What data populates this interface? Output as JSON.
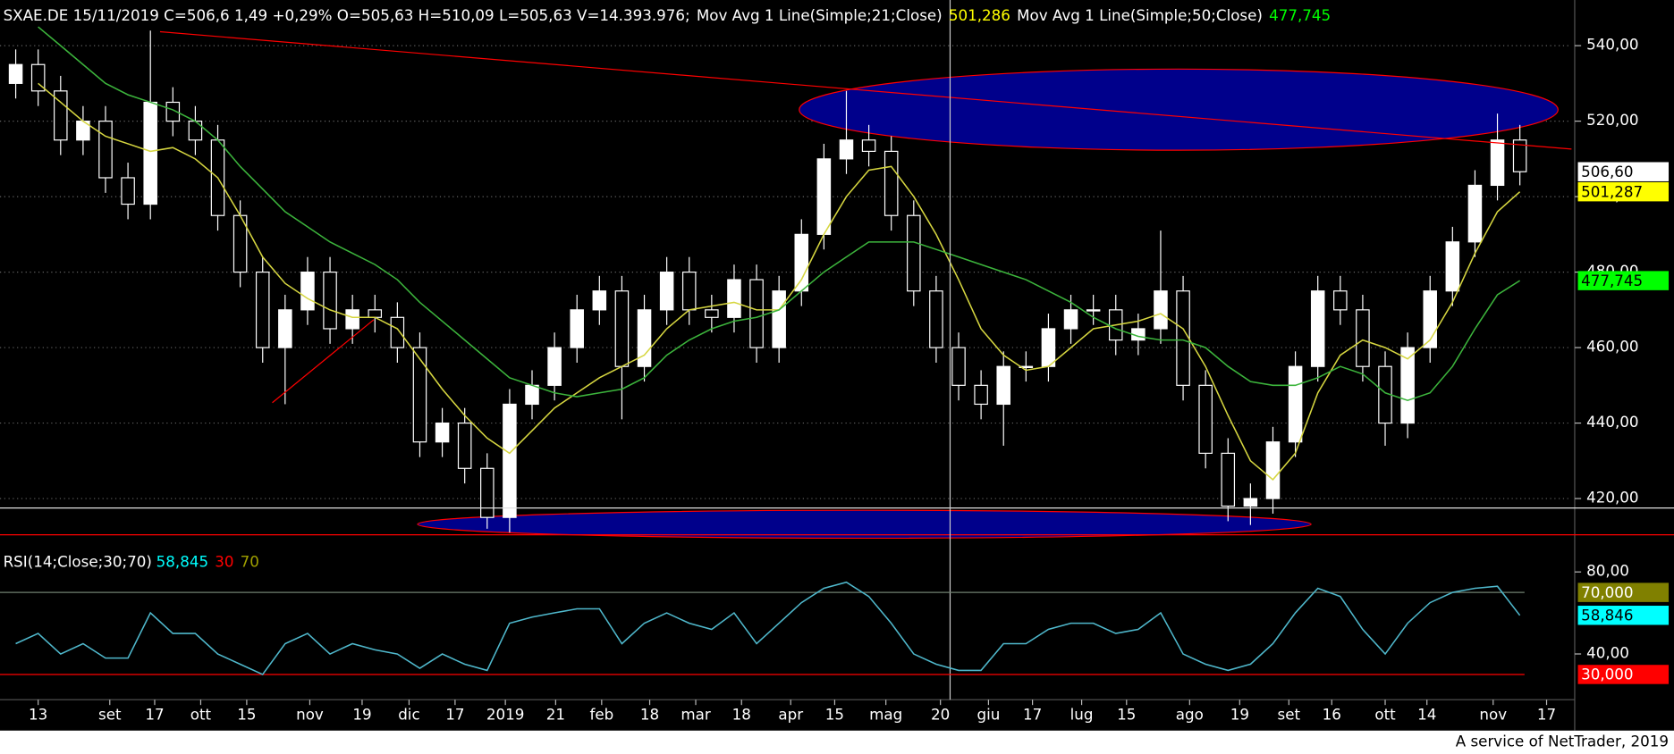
{
  "chart_data": [
    {
      "type": "candlestick",
      "title": "SXAE.DE 15/11/2019 C=506,6 1,49 +0,29% O=505,63 H=510,09 L=505,63 V=14.393.976;",
      "x": [
        0,
        1,
        2,
        3,
        4,
        5,
        6,
        7,
        8,
        9,
        10,
        11,
        12,
        13,
        14,
        15,
        16,
        17,
        18,
        19,
        20,
        21,
        22,
        23,
        24,
        25,
        26,
        27,
        28,
        29,
        30,
        31,
        32,
        33,
        34,
        35,
        36,
        37,
        38,
        39,
        40,
        41,
        42,
        43,
        44,
        45,
        46,
        47,
        48,
        49,
        50,
        51,
        52,
        53,
        54,
        55,
        56,
        57,
        58,
        59,
        60,
        61,
        62,
        63,
        64,
        65,
        66,
        67
      ],
      "xlim": [
        -0.7,
        69.3
      ],
      "ohlc": {
        "open": [
          530,
          535,
          528,
          515,
          520,
          505,
          498,
          525,
          520,
          515,
          495,
          480,
          460,
          470,
          480,
          465,
          470,
          468,
          460,
          435,
          440,
          428,
          415,
          445,
          450,
          460,
          470,
          475,
          455,
          470,
          480,
          470,
          468,
          478,
          460,
          475,
          490,
          510,
          515,
          512,
          495,
          475,
          460,
          450,
          445,
          455,
          455,
          465,
          470,
          470,
          462,
          465,
          475,
          450,
          432,
          418,
          420,
          435,
          455,
          475,
          470,
          455,
          440,
          460,
          475,
          488,
          503,
          515
        ],
        "high": [
          539,
          539,
          532,
          524,
          524,
          509,
          544,
          529,
          524,
          519,
          499,
          484,
          474,
          484,
          484,
          474,
          474,
          472,
          464,
          444,
          444,
          432,
          449,
          454,
          464,
          474,
          479,
          479,
          474,
          484,
          484,
          474,
          482,
          482,
          479,
          494,
          514,
          528,
          519,
          516,
          499,
          479,
          464,
          454,
          459,
          459,
          469,
          474,
          474,
          474,
          469,
          491,
          479,
          454,
          436,
          424,
          439,
          459,
          479,
          479,
          474,
          459,
          464,
          479,
          492,
          507,
          522,
          519
        ],
        "low": [
          526,
          524,
          511,
          511,
          501,
          494,
          494,
          516,
          511,
          491,
          476,
          456,
          445,
          466,
          461,
          461,
          464,
          456,
          431,
          431,
          424,
          412,
          411,
          441,
          446,
          456,
          466,
          441,
          451,
          466,
          466,
          464,
          464,
          456,
          456,
          471,
          486,
          506,
          508,
          491,
          471,
          456,
          446,
          441,
          434,
          451,
          451,
          461,
          466,
          458,
          458,
          461,
          446,
          428,
          414,
          413,
          416,
          431,
          451,
          466,
          451,
          434,
          436,
          456,
          471,
          484,
          499,
          503
        ],
        "close": [
          535,
          528,
          515,
          520,
          505,
          498,
          525,
          520,
          515,
          495,
          480,
          460,
          470,
          480,
          465,
          470,
          468,
          460,
          435,
          440,
          428,
          415,
          445,
          450,
          460,
          470,
          475,
          455,
          470,
          480,
          470,
          468,
          478,
          460,
          475,
          490,
          510,
          515,
          512,
          495,
          475,
          460,
          450,
          445,
          455,
          455,
          465,
          470,
          470,
          462,
          465,
          475,
          450,
          432,
          418,
          420,
          435,
          455,
          475,
          470,
          455,
          440,
          460,
          475,
          488,
          503,
          515,
          506.6
        ]
      },
      "series": [
        {
          "name": "Mov Avg 1 Line(Simple;21;Close)",
          "color": "#d6d640",
          "last_value_label": {
            "value": 501.286,
            "label": "501,286"
          },
          "values": [
            null,
            530,
            525,
            520,
            516,
            514,
            512,
            513,
            510,
            505,
            495,
            484,
            477,
            473,
            470,
            468,
            468,
            465,
            457,
            449,
            442,
            436,
            432,
            438,
            444,
            448,
            452,
            455,
            458,
            465,
            470,
            471,
            472,
            470,
            470,
            478,
            490,
            500,
            507,
            508,
            500,
            490,
            478,
            465,
            458,
            454,
            455,
            460,
            465,
            466,
            467,
            469,
            465,
            455,
            442,
            430,
            425,
            432,
            448,
            458,
            462,
            460,
            457,
            462,
            472,
            485,
            496,
            501.286
          ]
        },
        {
          "name": "Mov Avg 1 Line(Simple;50;Close)",
          "color": "#3cb43c",
          "last_value_label": {
            "value": 477.745,
            "label": "477,745"
          },
          "values": [
            null,
            545,
            540,
            535,
            530,
            527,
            525,
            523,
            520,
            515,
            508,
            502,
            496,
            492,
            488,
            485,
            482,
            478,
            472,
            467,
            462,
            457,
            452,
            450,
            448,
            447,
            448,
            449,
            452,
            458,
            462,
            465,
            467,
            468,
            470,
            475,
            480,
            484,
            488,
            488,
            488,
            486,
            484,
            482,
            480,
            478,
            475,
            472,
            468,
            465,
            463,
            462,
            462,
            460,
            455,
            451,
            450,
            450,
            452,
            455,
            453,
            448,
            446,
            448,
            455,
            465,
            474,
            477.745
          ]
        }
      ],
      "ylim": [
        409.6,
        552.1
      ],
      "yticks": [
        {
          "value": 420,
          "label": "420,00"
        },
        {
          "value": 440,
          "label": "440,00"
        },
        {
          "value": 460,
          "label": "460,00"
        },
        {
          "value": 480,
          "label": "480,00"
        },
        {
          "value": 500,
          "label": "500,00"
        },
        {
          "value": 520,
          "label": "520,00"
        },
        {
          "value": 540,
          "label": "540,00"
        }
      ],
      "grid": true,
      "price_boxes": [
        {
          "value": 506.6,
          "label": "506,60",
          "color": "#ffffff"
        },
        {
          "value": 501.287,
          "label": "501,287",
          "color": "#ffff00"
        },
        {
          "value": 477.745,
          "label": "477,745",
          "color": "#00ff00"
        }
      ],
      "ellipses": [
        {
          "x": [
            34.9,
            68.7
          ],
          "y": [
            512.3,
            533.8
          ],
          "fill": "#00008b",
          "stroke": "#ff0000"
        },
        {
          "x": [
            17.9,
            57.7
          ],
          "y": [
            409.5,
            416.9
          ],
          "fill": "#00008b",
          "stroke": "#ff0000"
        }
      ],
      "trend_lines": [
        {
          "x": [
            6.43,
            69.3
          ],
          "y": [
            543.7,
            512.6
          ],
          "color": "#ff0000"
        },
        {
          "x": [
            11.43,
            15.95
          ],
          "y": [
            445.4,
            467.4
          ],
          "color": "#ff0000"
        }
      ],
      "horizontal_lines": [
        {
          "y": 417.5,
          "color": "#e0e0e0"
        },
        {
          "y": 410.4,
          "color": "#ff0000"
        }
      ],
      "crosshair_x": 41.62
    },
    {
      "type": "line",
      "x": [
        0,
        1,
        2,
        3,
        4,
        5,
        6,
        7,
        8,
        9,
        10,
        11,
        12,
        13,
        14,
        15,
        16,
        17,
        18,
        19,
        20,
        21,
        22,
        23,
        24,
        25,
        26,
        27,
        28,
        29,
        30,
        31,
        32,
        33,
        34,
        35,
        36,
        37,
        38,
        39,
        40,
        41,
        42,
        43,
        44,
        45,
        46,
        47,
        48,
        49,
        50,
        51,
        52,
        53,
        54,
        55,
        56,
        57,
        58,
        59,
        60,
        61,
        62,
        63,
        64,
        65,
        66,
        67
      ],
      "xlim": [
        -0.7,
        69.3
      ],
      "series": [
        {
          "name": "RSI(14;Close;30;70)",
          "color": "#4fb8cc",
          "last_value_label": {
            "value": 58.845,
            "label": "58,845"
          },
          "values": [
            45,
            50,
            40,
            45,
            38,
            38,
            60,
            50,
            50,
            40,
            35,
            30,
            45,
            50,
            40,
            45,
            42,
            40,
            33,
            40,
            35,
            32,
            55,
            58,
            60,
            62,
            62,
            45,
            55,
            60,
            55,
            52,
            60,
            45,
            55,
            65,
            72,
            75,
            68,
            55,
            40,
            35,
            32,
            32,
            45,
            45,
            52,
            55,
            55,
            50,
            52,
            60,
            40,
            35,
            32,
            35,
            45,
            60,
            72,
            68,
            52,
            40,
            55,
            65,
            70,
            72,
            73,
            58.845
          ]
        }
      ],
      "levels": [
        {
          "value": 30,
          "label": "30",
          "box_label": "30,000",
          "color": "#ff0000"
        },
        {
          "value": 70,
          "label": "70",
          "box_label": "70,000",
          "color": "#808000"
        }
      ],
      "value_box": {
        "value": 58.846,
        "label": "58,846",
        "color": "#00ffff"
      },
      "ylim": [
        17.7,
        93
      ],
      "yticks": [
        {
          "value": 40,
          "label": "40,00"
        },
        {
          "value": 80,
          "label": "80,00"
        }
      ],
      "xticks": [
        {
          "value": 1.0,
          "label": "13"
        },
        {
          "value": 4.19,
          "label": "set"
        },
        {
          "value": 6.19,
          "label": "17"
        },
        {
          "value": 8.24,
          "label": "ott"
        },
        {
          "value": 10.29,
          "label": "15"
        },
        {
          "value": 13.1,
          "label": "nov"
        },
        {
          "value": 15.43,
          "label": "19"
        },
        {
          "value": 17.52,
          "label": "dic"
        },
        {
          "value": 19.57,
          "label": "17"
        },
        {
          "value": 21.81,
          "label": "2019"
        },
        {
          "value": 24.05,
          "label": "21"
        },
        {
          "value": 26.1,
          "label": "feb"
        },
        {
          "value": 28.24,
          "label": "18"
        },
        {
          "value": 30.29,
          "label": "mar"
        },
        {
          "value": 32.33,
          "label": "18"
        },
        {
          "value": 34.52,
          "label": "apr"
        },
        {
          "value": 36.48,
          "label": "15"
        },
        {
          "value": 38.76,
          "label": "mag"
        },
        {
          "value": 41.19,
          "label": "20"
        },
        {
          "value": 43.33,
          "label": "giu"
        },
        {
          "value": 45.29,
          "label": "17"
        },
        {
          "value": 47.48,
          "label": "lug"
        },
        {
          "value": 49.48,
          "label": "15"
        },
        {
          "value": 52.29,
          "label": "ago"
        },
        {
          "value": 54.52,
          "label": "19"
        },
        {
          "value": 56.71,
          "label": "set"
        },
        {
          "value": 58.62,
          "label": "16"
        },
        {
          "value": 61.0,
          "label": "ott"
        },
        {
          "value": 62.86,
          "label": "14"
        },
        {
          "value": 65.81,
          "label": "nov"
        },
        {
          "value": 68.19,
          "label": "17"
        }
      ]
    }
  ],
  "footer": "A service of NetTrader, 2019"
}
